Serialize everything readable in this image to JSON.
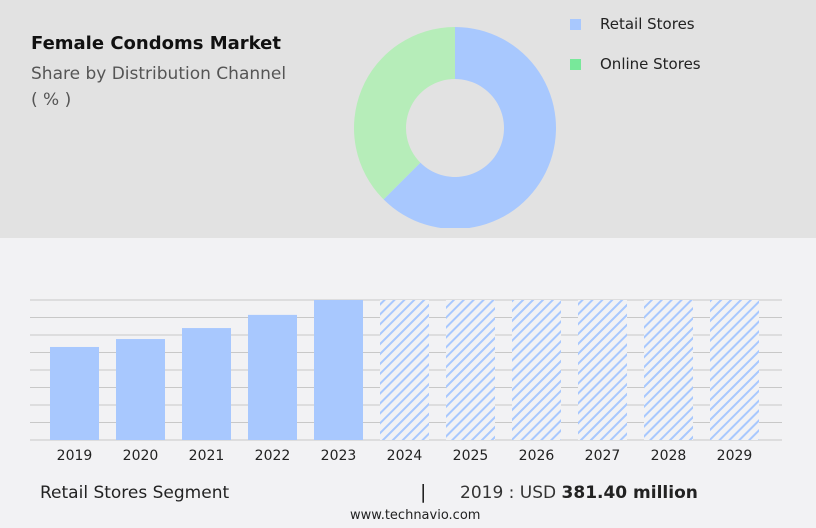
{
  "title": "Female Condoms Market",
  "subtitle": "Share by Distribution Channel",
  "unit": "( % )",
  "colors": {
    "retail": "#a8c8fe",
    "online": "#b6edb9",
    "online_legend": "#78e89a",
    "hatch": "#a8c8fe"
  },
  "chart_data": [
    {
      "type": "pie",
      "variant": "donut",
      "slices": [
        {
          "name": "Retail Stores",
          "value": 62.5
        },
        {
          "name": "Online Stores",
          "value": 37.5
        }
      ],
      "legend": "top-right"
    },
    {
      "type": "bar",
      "categories": [
        "2019",
        "2020",
        "2021",
        "2022",
        "2023",
        "2024",
        "2025",
        "2026",
        "2027",
        "2028",
        "2029"
      ],
      "values": [
        381.4,
        414,
        459,
        513,
        574,
        null,
        null,
        null,
        null,
        null,
        null
      ],
      "forecast_categories": [
        "2024",
        "2025",
        "2026",
        "2027",
        "2028",
        "2029"
      ],
      "ylim": [
        0,
        574
      ],
      "grid": true,
      "yaxis_labels": false
    }
  ],
  "footer": {
    "segment": "Retail Stores Segment",
    "separator": "|",
    "year_label": "2019 : USD",
    "value": "381.40 million",
    "site": "www.technavio.com"
  }
}
